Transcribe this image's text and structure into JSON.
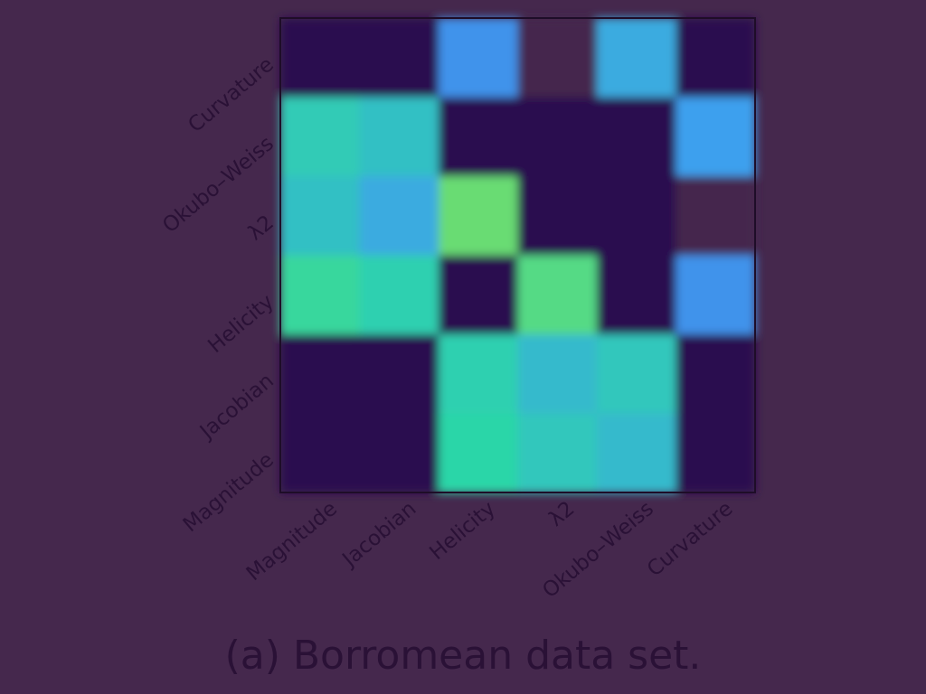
{
  "caption": "(a) Borromean data set.",
  "chart_data": {
    "type": "heatmap",
    "title": "",
    "x_labels": [
      "Magnitude",
      "Jacobian",
      "Helicity",
      "λ2",
      "Okubo–Weiss",
      "Curvature"
    ],
    "y_labels_bottom_to_top": [
      "Magnitude",
      "Jacobian",
      "Helicity",
      "λ2",
      "Okubo–Weiss",
      "Curvature"
    ],
    "rows_top_to_bottom": [
      [
        0.0,
        0.0,
        0.45,
        0.0,
        0.55,
        0.0
      ],
      [
        0.7,
        0.65,
        0.0,
        0.0,
        0.0,
        0.5
      ],
      [
        0.65,
        0.55,
        0.9,
        0.0,
        0.0,
        0.0
      ],
      [
        0.78,
        0.72,
        0.0,
        0.85,
        0.0,
        0.45
      ],
      [
        0.0,
        0.0,
        0.72,
        0.62,
        0.68,
        0.0
      ],
      [
        0.0,
        0.0,
        0.75,
        0.68,
        0.62,
        0.0
      ]
    ],
    "blank_cells_row_col": [
      [
        0,
        3
      ],
      [
        2,
        5
      ]
    ],
    "colormap": [
      "#2a1050",
      "#4b60e0",
      "#3ea0ee",
      "#2cd6a8",
      "#92e050"
    ],
    "blank_color": "#45284d",
    "frame_color": "#1e0d28"
  }
}
